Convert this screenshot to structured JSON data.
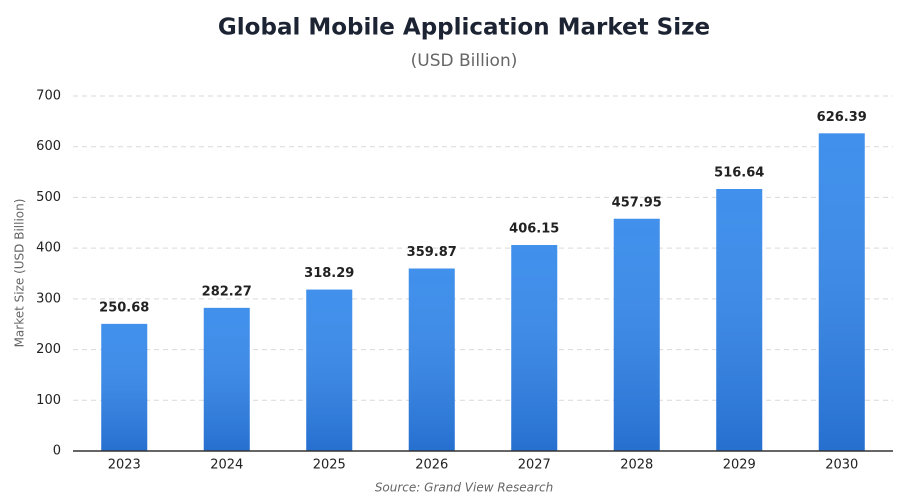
{
  "chart_data": {
    "type": "bar",
    "title": "Global Mobile Application Market Size",
    "subtitle": "(USD Billion)",
    "y_label": "Market Size (USD Billion)",
    "source": "Source: Grand View Research",
    "categories": [
      "2023",
      "2024",
      "2025",
      "2026",
      "2027",
      "2028",
      "2029",
      "2030"
    ],
    "values": [
      250.68,
      282.27,
      318.29,
      359.87,
      406.15,
      457.95,
      516.64,
      626.39
    ],
    "color": "#2f86ea",
    "ylim": [
      0,
      700
    ],
    "yticks": [
      0,
      100,
      200,
      300,
      400,
      500,
      600,
      700
    ],
    "grid": true
  }
}
